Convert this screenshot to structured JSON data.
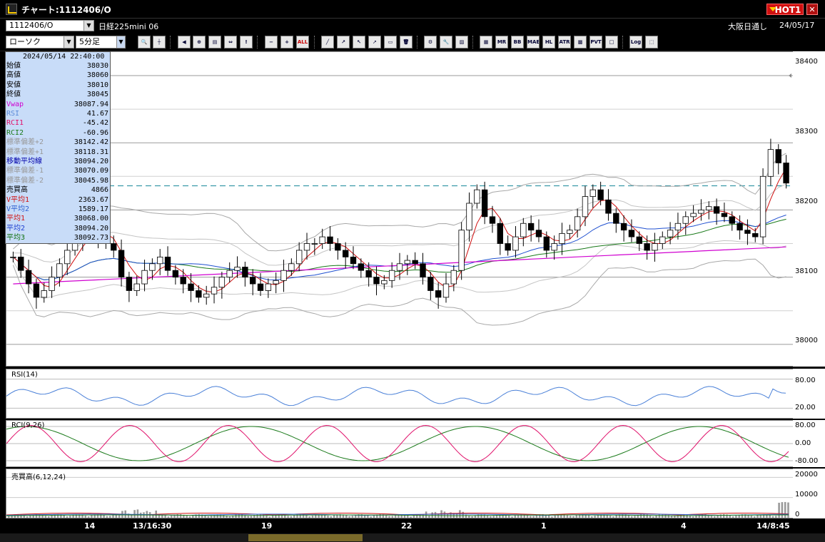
{
  "window": {
    "title": "チャート:1112406/O",
    "hot_label": "HOT1",
    "close_glyph": "✕"
  },
  "infobar": {
    "symbol": "1112406/O",
    "instrument": "日経225mini 06",
    "session": "大阪日通し",
    "date": "24/05/17"
  },
  "toolbar": {
    "chart_type": "ローソク",
    "period": "5分足",
    "btn_all": "ALL",
    "btn_mr": "MR",
    "btn_bb": "BB",
    "btn_mae": "MAE",
    "btn_hl": "HL",
    "btn_atr": "ATR",
    "btn_pvt": "PVT",
    "btn_log": "Log"
  },
  "data_panel": {
    "datetime": "2024/05/14 22:40:00",
    "rows": [
      {
        "label": "始値",
        "value": "38030",
        "color": "#000000"
      },
      {
        "label": "高値",
        "value": "38060",
        "color": "#000000"
      },
      {
        "label": "安値",
        "value": "38010",
        "color": "#000000"
      },
      {
        "label": "終値",
        "value": "38045",
        "color": "#000000"
      },
      {
        "label": "Vwap",
        "value": "38087.94",
        "color": "#d000d0"
      },
      {
        "label": "RSI",
        "value": "41.67",
        "color": "#5a8ad8"
      },
      {
        "label": "RCI1",
        "value": "-45.42",
        "color": "#e0106a"
      },
      {
        "label": "RCI2",
        "value": "-60.96",
        "color": "#1a7a1a"
      },
      {
        "label": "標準偏差+2",
        "value": "38142.42",
        "color": "#999999"
      },
      {
        "label": "標準偏差+1",
        "value": "38118.31",
        "color": "#999999"
      },
      {
        "label": "移動平均線",
        "value": "38094.20",
        "color": "#0000aa"
      },
      {
        "label": "標準偏差-1",
        "value": "38070.09",
        "color": "#999999"
      },
      {
        "label": "標準偏差-2",
        "value": "38045.98",
        "color": "#999999"
      },
      {
        "label": "売買高",
        "value": "4866",
        "color": "#000000"
      },
      {
        "label": "V平均1",
        "value": "2363.67",
        "color": "#d01010"
      },
      {
        "label": "V平均2",
        "value": "1589.17",
        "color": "#3060d0"
      },
      {
        "label": "平均1",
        "value": "38068.00",
        "color": "#d01010"
      },
      {
        "label": "平均2",
        "value": "38094.20",
        "color": "#2040d0"
      },
      {
        "label": "平均3",
        "value": "38092.73",
        "color": "#107010"
      }
    ]
  },
  "main_chart": {
    "y_ticks": [
      "38400",
      "38300",
      "38200",
      "38100",
      "38000"
    ],
    "y_range": [
      37968,
      38435
    ]
  },
  "rsi_pane": {
    "title": "RSI(14)",
    "y_ticks": [
      "80.00",
      "20.00"
    ]
  },
  "rci_pane": {
    "title": "RCI(9,26)",
    "y_ticks": [
      "80.00",
      "0.00",
      "-80.00"
    ]
  },
  "vol_pane": {
    "title": "売買高(6,12,24)",
    "y_ticks": [
      "20000",
      "10000",
      "0"
    ]
  },
  "x_axis": {
    "labels": [
      "14",
      "13/16:30",
      "19",
      "22",
      "1",
      "4",
      "14/8:45"
    ]
  },
  "chart_data": {
    "type": "candlestick",
    "ylim": [
      37968,
      38435
    ],
    "close": [
      38130,
      38110,
      38090,
      38070,
      38080,
      38100,
      38120,
      38140,
      38150,
      38170,
      38180,
      38160,
      38150,
      38140,
      38100,
      38080,
      38090,
      38110,
      38120,
      38130,
      38110,
      38100,
      38090,
      38080,
      38070,
      38075,
      38085,
      38100,
      38110,
      38115,
      38100,
      38090,
      38080,
      38090,
      38095,
      38110,
      38120,
      38140,
      38150,
      38150,
      38160,
      38150,
      38140,
      38130,
      38120,
      38110,
      38100,
      38090,
      38095,
      38110,
      38120,
      38125,
      38120,
      38100,
      38080,
      38070,
      38090,
      38110,
      38170,
      38210,
      38230,
      38190,
      38180,
      38150,
      38140,
      38160,
      38180,
      38170,
      38160,
      38140,
      38150,
      38165,
      38170,
      38190,
      38220,
      38230,
      38215,
      38195,
      38180,
      38170,
      38160,
      38150,
      38140,
      38150,
      38160,
      38170,
      38180,
      38190,
      38195,
      38200,
      38205,
      38195,
      38190,
      38180,
      38170,
      38165,
      38160,
      38250,
      38290,
      38270,
      38240
    ]
  }
}
